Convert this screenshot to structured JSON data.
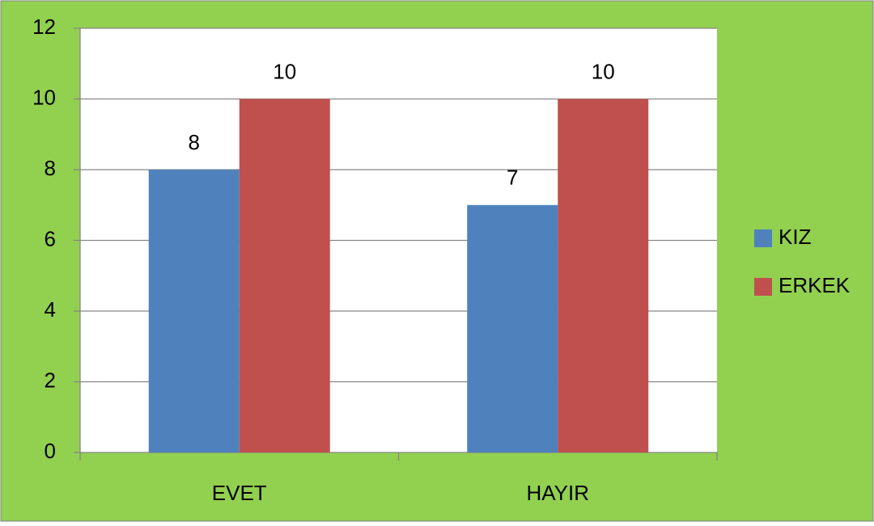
{
  "chart_data": {
    "type": "bar",
    "categories": [
      "EVET",
      "HAYIR"
    ],
    "series": [
      {
        "name": "KIZ",
        "color": "#4f81bd",
        "values": [
          8,
          7
        ]
      },
      {
        "name": "ERKEK",
        "color": "#c0504d",
        "values": [
          10,
          10
        ]
      }
    ],
    "ylim": [
      0,
      12
    ],
    "yticks": [
      0,
      2,
      4,
      6,
      8,
      10,
      12
    ],
    "grid": true,
    "legend": "right",
    "background": "#92d050",
    "plot_background": "#ffffff"
  }
}
